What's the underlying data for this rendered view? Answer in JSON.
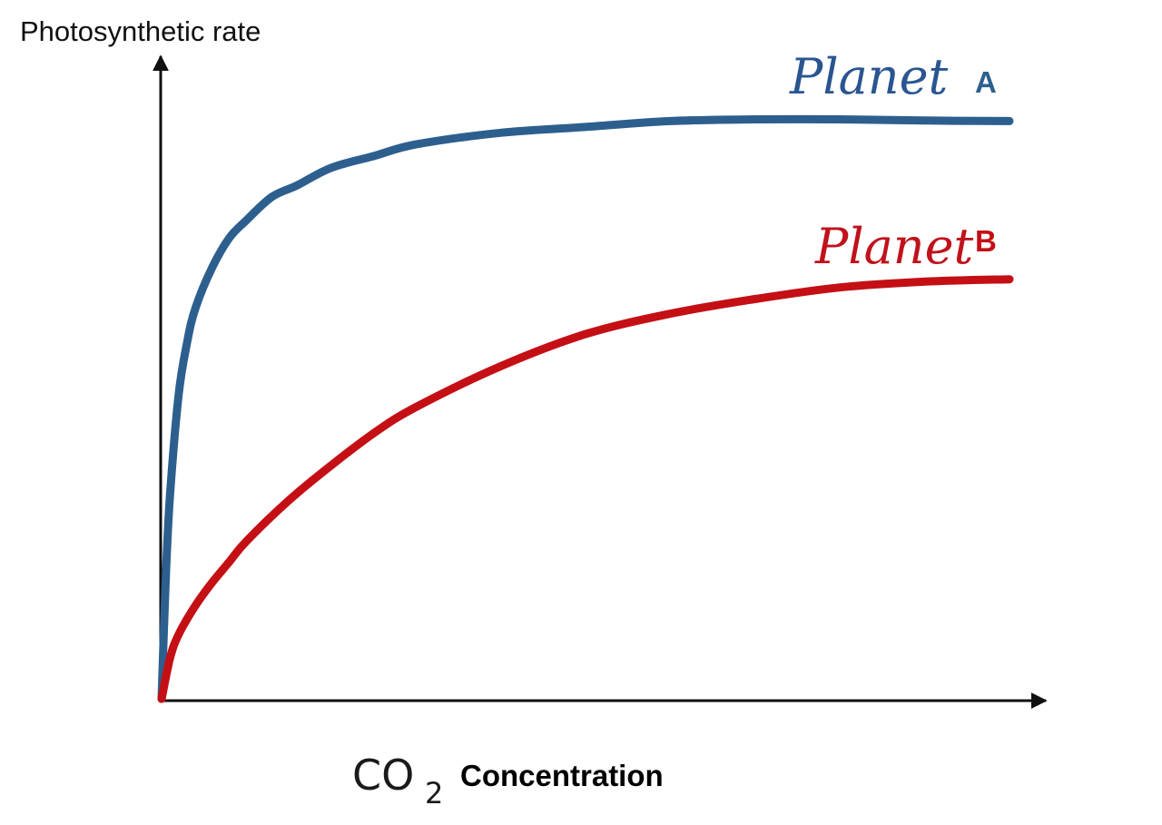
{
  "chart_data": {
    "type": "line",
    "ylabel": "Photosynthetic rate",
    "xlabel": {
      "formula": "CO",
      "subscript": "2",
      "text": "Concentration"
    },
    "xlim": [
      0,
      100
    ],
    "ylim": [
      0,
      100
    ],
    "grid": false,
    "axes_arrows": true,
    "series": [
      {
        "name": "A",
        "handwritten_label": "Planet",
        "color": "#2d5f8e",
        "x": [
          0,
          0.5,
          1,
          2,
          3,
          4,
          6,
          8,
          10,
          13,
          16,
          20,
          25,
          30,
          40,
          50,
          60,
          70,
          80,
          90,
          100
        ],
        "values": [
          0,
          21,
          35,
          52,
          61,
          67,
          74,
          79,
          82,
          86,
          88,
          91,
          93,
          95,
          97,
          98,
          99,
          99.3,
          99.3,
          99.1,
          99
        ]
      },
      {
        "name": "B",
        "handwritten_label": "Planet",
        "color": "#c40f15",
        "x": [
          0,
          1,
          2,
          4,
          6,
          8,
          10,
          15,
          20,
          25,
          30,
          40,
          50,
          60,
          70,
          80,
          90,
          100
        ],
        "values": [
          0,
          7,
          11,
          16,
          20,
          23.5,
          27,
          34,
          40,
          45.5,
          50,
          57,
          62.5,
          66,
          68.5,
          70.5,
          71.5,
          71.9
        ]
      }
    ]
  }
}
